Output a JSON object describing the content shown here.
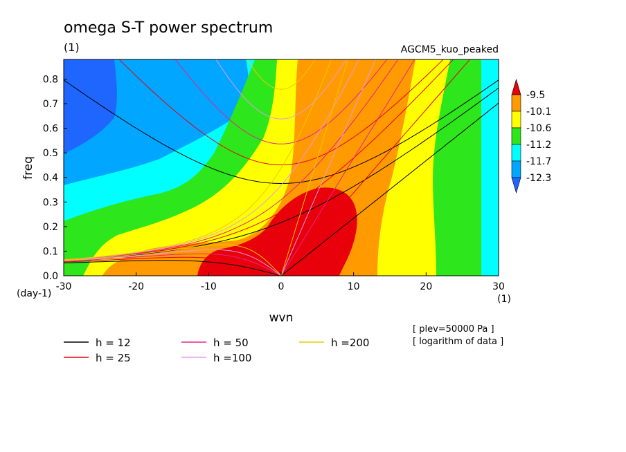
{
  "chart_data": {
    "type": "heatmap",
    "title": "omega S-T power spectrum",
    "title_units": "(1)",
    "subtitle_right": "AGCM5_kuo_peaked",
    "xlabel": "wvn",
    "ylabel": "freq",
    "x_units": "(1)",
    "y_units": "(day-1)",
    "xlim": [
      -30,
      30
    ],
    "ylim": [
      0.0,
      0.88
    ],
    "x_ticks": [
      -30,
      -20,
      -10,
      0,
      10,
      20,
      30
    ],
    "x_tick_labels": [
      "-30",
      "-20",
      "-10",
      "0",
      "10",
      "20",
      "30"
    ],
    "y_ticks": [
      0.0,
      0.1,
      0.2,
      0.3,
      0.4,
      0.5,
      0.6,
      0.7,
      0.8
    ],
    "y_tick_labels": [
      "0.0",
      "0.1",
      "0.2",
      "0.3",
      "0.4",
      "0.5",
      "0.6",
      "0.7",
      "0.8"
    ],
    "colorbar": {
      "levels": [
        "-9.5",
        "-10.1",
        "-10.6",
        "-11.2",
        "-11.7",
        "-12.3"
      ],
      "colors": [
        "#e8000b",
        "#ff9a00",
        "#ffff00",
        "#2ee61c",
        "#00ffff",
        "#00a6ff",
        "#1f66ff"
      ]
    },
    "dispersion_curves": [
      {
        "label": "h = 12",
        "h": 12,
        "color": "#000000"
      },
      {
        "label": "h = 25",
        "h": 25,
        "color": "#e8000b"
      },
      {
        "label": "h = 50",
        "h": 50,
        "color": "#e8228c"
      },
      {
        "label": "h =100",
        "h": 100,
        "color": "#e69ae6"
      },
      {
        "label": "h =200",
        "h": 200,
        "color": "#f0c800"
      }
    ],
    "notes": [
      "[ plev=50000 Pa ]",
      "[ logarithm of data ]"
    ]
  }
}
